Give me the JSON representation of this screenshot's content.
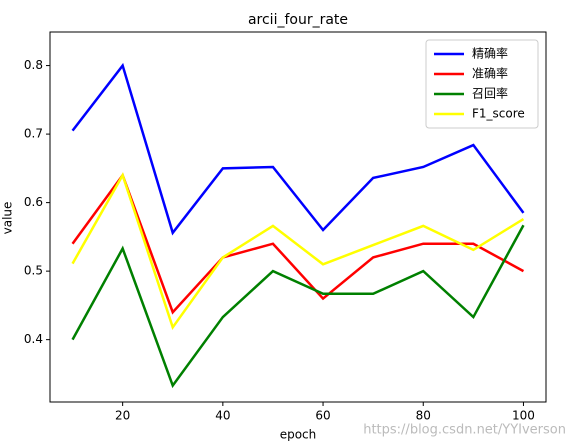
{
  "chart_data": {
    "type": "line",
    "title": "arcii_four_rate",
    "x_label": "epoch",
    "y_label": "value",
    "x": [
      10,
      20,
      30,
      40,
      50,
      60,
      70,
      80,
      90,
      100
    ],
    "series": [
      {
        "name": "精确率",
        "color": "#0000ff",
        "values": [
          0.705,
          0.8,
          0.556,
          0.65,
          0.652,
          0.56,
          0.636,
          0.652,
          0.684,
          0.585
        ]
      },
      {
        "name": "准确率",
        "color": "#ff0000",
        "values": [
          0.54,
          0.64,
          0.44,
          0.52,
          0.54,
          0.46,
          0.52,
          0.54,
          0.54,
          0.5
        ]
      },
      {
        "name": "召回率",
        "color": "#008000",
        "values": [
          0.4,
          0.533,
          0.333,
          0.433,
          0.5,
          0.467,
          0.467,
          0.5,
          0.433,
          0.567
        ]
      },
      {
        "name": "F1_score",
        "color": "#ffff00",
        "values": [
          0.511,
          0.64,
          0.418,
          0.52,
          0.566,
          0.51,
          0.538,
          0.566,
          0.531,
          0.576
        ]
      }
    ],
    "xlim": [
      5.5,
      104.5
    ],
    "xticks": [
      20,
      40,
      60,
      80,
      100
    ],
    "ylim": [
      0.309,
      0.849
    ],
    "yticks": [
      0.4,
      0.5,
      0.6,
      0.7,
      0.8
    ],
    "grid": false,
    "legend": "upper right",
    "watermark": "https://blog.csdn.net/YYIverson"
  }
}
